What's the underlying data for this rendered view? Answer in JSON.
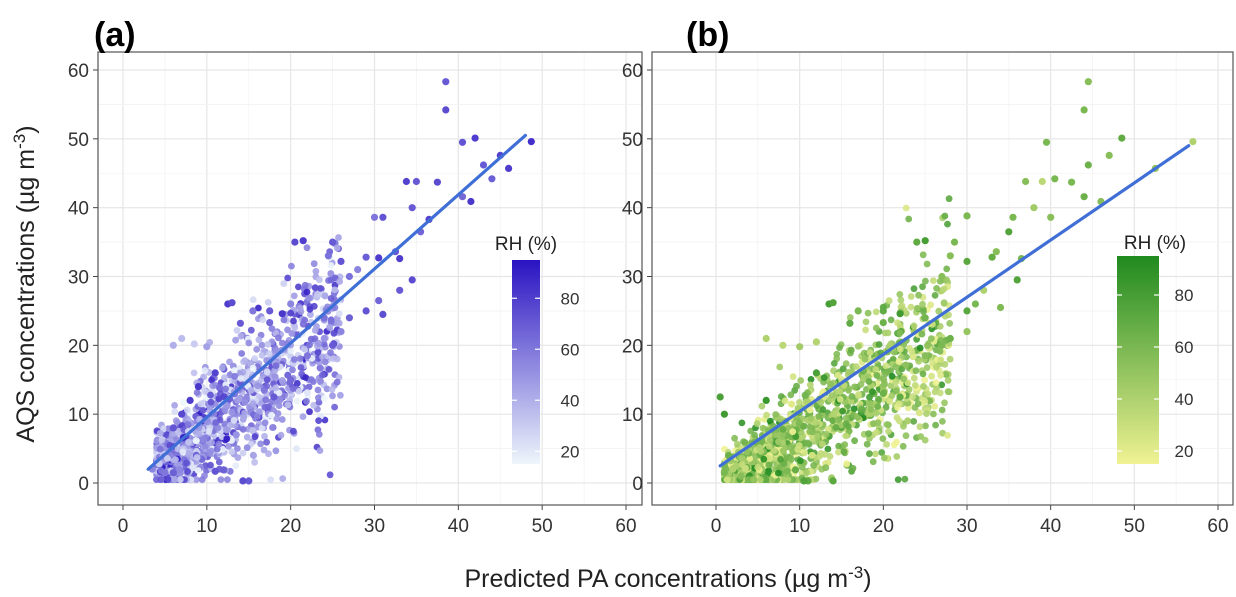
{
  "figure": {
    "ylabel": "AQS concentrations (µg m",
    "ylabel_sup": "-3",
    "ylabel_end": ")",
    "xlabel": "Predicted PA concentrations (µg m",
    "xlabel_sup": "-3",
    "xlabel_end": ")"
  },
  "chart_data": [
    {
      "type": "scatter",
      "panel_label": "(a)",
      "xlim": [
        0,
        60
      ],
      "ylim": [
        0,
        60
      ],
      "xticks": [
        "0",
        "10",
        "20",
        "30",
        "40",
        "50",
        "60"
      ],
      "yticks": [
        "0",
        "10",
        "20",
        "30",
        "40",
        "50",
        "60"
      ],
      "grid": true,
      "fit_line": {
        "color": "#3f6fd6",
        "x": [
          3,
          48
        ],
        "y": [
          2,
          50.5
        ]
      },
      "color_scale": {
        "title": "RH (%)",
        "ticks": [
          "20",
          "40",
          "60",
          "80"
        ],
        "tick_values": [
          20,
          40,
          60,
          80
        ],
        "range": [
          15,
          95
        ],
        "low_color": "#eef6fb",
        "high_color": "#2a13c2"
      },
      "points": [
        [
          38.5,
          58.3,
          70
        ],
        [
          38.5,
          54.2,
          75
        ],
        [
          42,
          50.1,
          80
        ],
        [
          48.7,
          49.6,
          85
        ],
        [
          40.5,
          49.5,
          72
        ],
        [
          45,
          47.6,
          78
        ],
        [
          43,
          46.2,
          70
        ],
        [
          46,
          45.7,
          80
        ],
        [
          44,
          44.2,
          68
        ],
        [
          33.8,
          43.8,
          78
        ],
        [
          35,
          43.8,
          70
        ],
        [
          37.5,
          43.7,
          75
        ],
        [
          40.5,
          41.6,
          65
        ],
        [
          41.5,
          40.9,
          82
        ],
        [
          34.5,
          40,
          70
        ],
        [
          30,
          38.6,
          60
        ],
        [
          31,
          38.6,
          72
        ],
        [
          36.5,
          38.3,
          78
        ],
        [
          35.5,
          36.5,
          66
        ],
        [
          32.5,
          33.6,
          70
        ],
        [
          33,
          32.6,
          80
        ],
        [
          20.5,
          35,
          75
        ],
        [
          21.5,
          35.2,
          80
        ],
        [
          25,
          35,
          70
        ],
        [
          24.5,
          33,
          62
        ],
        [
          26,
          32.2,
          72
        ],
        [
          29,
          32.8,
          68
        ],
        [
          30.5,
          32.7,
          80
        ],
        [
          28,
          31,
          55
        ],
        [
          27,
          30,
          62
        ],
        [
          34.5,
          29.5,
          75
        ],
        [
          33,
          28,
          70
        ],
        [
          30.5,
          26.5,
          66
        ],
        [
          29,
          25,
          72
        ],
        [
          31,
          24.5,
          74
        ],
        [
          27,
          24,
          68
        ],
        [
          24,
          24,
          62
        ],
        [
          20,
          26,
          55
        ],
        [
          12.5,
          26,
          80
        ],
        [
          13,
          26.2,
          75
        ],
        [
          15.5,
          25,
          60
        ],
        [
          17.5,
          25,
          70
        ],
        [
          19,
          24.6,
          82
        ],
        [
          17.5,
          23.3,
          65
        ],
        [
          14,
          23.2,
          70
        ],
        [
          6,
          20,
          40
        ],
        [
          7,
          21,
          35
        ],
        [
          8.5,
          20.2,
          30
        ],
        [
          10,
          19.8,
          45
        ],
        [
          15,
          0.3,
          70
        ],
        [
          14.3,
          0.3,
          75
        ],
        [
          11,
          1.7,
          72
        ],
        [
          12,
          1.9,
          68
        ],
        [
          13.5,
          7,
          50
        ],
        [
          5,
          1.5,
          60
        ],
        [
          6,
          1.5,
          68
        ],
        [
          3.5,
          2,
          55
        ],
        [
          4.3,
          2.8,
          30
        ],
        [
          24,
          21,
          50
        ],
        [
          22,
          18.5,
          60
        ],
        [
          25,
          20,
          70
        ],
        [
          26,
          22,
          55
        ],
        [
          11,
          16,
          78
        ],
        [
          9,
          14,
          82
        ],
        [
          8,
          12,
          80
        ],
        [
          7,
          10,
          76
        ],
        [
          6,
          8,
          72
        ],
        [
          20,
          15,
          65
        ],
        [
          18,
          12.5,
          70
        ]
      ],
      "cloud": {
        "x_range": [
          4,
          26
        ],
        "center": {
          "x0": 3,
          "y0": 1,
          "slope": 0.95
        },
        "spread_base": 1.5,
        "spread_growth": 0.2,
        "count": 1300,
        "seed": 7,
        "rh_mean": 50,
        "rh_spread": 38
      }
    },
    {
      "type": "scatter",
      "panel_label": "(b)",
      "xlim": [
        0,
        60
      ],
      "ylim": [
        0,
        60
      ],
      "xticks": [
        "0",
        "10",
        "20",
        "30",
        "40",
        "50",
        "60"
      ],
      "yticks": [
        "0",
        "10",
        "20",
        "30",
        "40",
        "50",
        "60"
      ],
      "grid": true,
      "fit_line": {
        "color": "#3f6fd6",
        "x": [
          0.5,
          56.5
        ],
        "y": [
          2.5,
          49
        ]
      },
      "color_scale": {
        "title": "RH (%)",
        "ticks": [
          "20",
          "40",
          "60",
          "80"
        ],
        "tick_values": [
          20,
          40,
          60,
          80
        ],
        "range": [
          15,
          95
        ],
        "low_color": "#f0f293",
        "high_color": "#1f8a1f"
      },
      "points": [
        [
          44.5,
          58.3,
          55
        ],
        [
          44,
          54.2,
          60
        ],
        [
          48.5,
          50.1,
          70
        ],
        [
          57,
          49.6,
          40
        ],
        [
          39.5,
          49.5,
          60
        ],
        [
          47,
          47.6,
          55
        ],
        [
          44.5,
          46.2,
          65
        ],
        [
          52.5,
          45.7,
          50
        ],
        [
          40.5,
          44.2,
          60
        ],
        [
          37,
          43.8,
          55
        ],
        [
          39,
          43.8,
          35
        ],
        [
          42.5,
          43.7,
          60
        ],
        [
          44,
          41.6,
          65
        ],
        [
          46,
          40.9,
          55
        ],
        [
          38,
          40,
          45
        ],
        [
          35.5,
          38.6,
          60
        ],
        [
          40,
          38.6,
          55
        ],
        [
          30,
          38.8,
          60
        ],
        [
          35,
          36.5,
          75
        ],
        [
          33.5,
          33.6,
          55
        ],
        [
          36.5,
          32.6,
          60
        ],
        [
          24,
          35,
          70
        ],
        [
          25,
          35.2,
          80
        ],
        [
          28.5,
          35,
          60
        ],
        [
          28,
          33,
          55
        ],
        [
          30,
          32.2,
          72
        ],
        [
          33,
          32.8,
          68
        ],
        [
          36,
          29.5,
          75
        ],
        [
          32,
          28,
          40
        ],
        [
          27,
          30,
          55
        ],
        [
          31,
          26,
          60
        ],
        [
          34,
          25.5,
          58
        ],
        [
          30,
          25,
          72
        ],
        [
          25,
          24,
          62
        ],
        [
          13.5,
          26,
          80
        ],
        [
          14,
          26.2,
          75
        ],
        [
          17,
          25,
          60
        ],
        [
          20,
          25,
          70
        ],
        [
          22,
          24.6,
          82
        ],
        [
          20,
          23.3,
          65
        ],
        [
          16,
          23.2,
          70
        ],
        [
          6,
          21,
          40
        ],
        [
          8,
          20,
          35
        ],
        [
          10,
          19.8,
          45
        ],
        [
          12,
          20.5,
          38
        ],
        [
          11,
          0.3,
          70
        ],
        [
          10.5,
          0.3,
          75
        ],
        [
          14,
          0.3,
          72
        ],
        [
          8.5,
          1.7,
          60
        ],
        [
          9.5,
          1.9,
          68
        ],
        [
          3,
          1,
          55
        ],
        [
          1,
          1.5,
          60
        ],
        [
          2,
          2,
          40
        ],
        [
          1.5,
          4,
          65
        ],
        [
          27,
          20,
          60
        ],
        [
          25,
          18.5,
          55
        ],
        [
          28,
          21,
          65
        ],
        [
          30,
          22,
          50
        ],
        [
          12,
          16,
          78
        ],
        [
          6,
          12,
          85
        ],
        [
          1,
          10,
          82
        ],
        [
          0.5,
          12.5,
          78
        ],
        [
          20,
          13,
          65
        ],
        [
          22,
          12.5,
          70
        ]
      ],
      "cloud": {
        "x_range": [
          1,
          28
        ],
        "center": {
          "x0": 2.5,
          "y0": 1,
          "slope": 0.77
        },
        "spread_base": 1.8,
        "spread_growth": 0.18,
        "count": 1500,
        "seed": 19,
        "rh_mean": 50,
        "rh_spread": 40
      }
    }
  ]
}
